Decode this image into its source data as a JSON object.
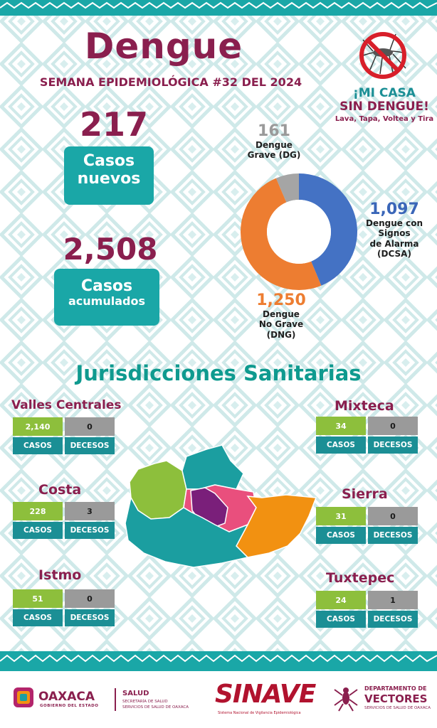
{
  "header": {
    "title": "Dengue",
    "subtitle": "SEMANA EPIDEMIOLÓGICA #32 DEL 2024"
  },
  "campaign": {
    "line1": "¡MI CASA",
    "line2": "SIN DENGUE!",
    "slogan": "Lava, Tapa, Voltea y Tira"
  },
  "summary": {
    "new_cases_value": "217",
    "new_cases_label_1": "Casos",
    "new_cases_label_2": "nuevos",
    "total_cases_value": "2,508",
    "total_cases_label_1": "Casos",
    "total_cases_label_2": "acumulados"
  },
  "chart_data": {
    "type": "pie",
    "series": [
      {
        "value": 1097,
        "value_label": "1,097",
        "label_lines": [
          "Dengue con",
          "Signos",
          "de Alarma",
          "(DCSA)"
        ],
        "color": "#4472c4"
      },
      {
        "value": 1250,
        "value_label": "1,250",
        "label_lines": [
          "Dengue",
          "No Grave",
          "(DNG)"
        ],
        "color": "#ed7d31"
      },
      {
        "value": 161,
        "value_label": "161",
        "label_lines": [
          "Dengue",
          "Grave (DG)"
        ],
        "color": "#a5a5a5"
      }
    ]
  },
  "jurisdictions_title": "Jurisdicciones Sanitarias",
  "jurisdictions": [
    {
      "name": "Valles Centrales",
      "cases": "2,140",
      "deaths": "0",
      "cases_label": "CASOS",
      "deaths_label": "DECESOS"
    },
    {
      "name": "Costa",
      "cases": "228",
      "deaths": "3",
      "cases_label": "CASOS",
      "deaths_label": "DECESOS"
    },
    {
      "name": "Istmo",
      "cases": "51",
      "deaths": "0",
      "cases_label": "CASOS",
      "deaths_label": "DECESOS"
    },
    {
      "name": "Mixteca",
      "cases": "34",
      "deaths": "0",
      "cases_label": "CASOS",
      "deaths_label": "DECESOS"
    },
    {
      "name": "Sierra",
      "cases": "31",
      "deaths": "0",
      "cases_label": "CASOS",
      "deaths_label": "DECESOS"
    },
    {
      "name": "Tuxtepec",
      "cases": "24",
      "deaths": "1",
      "cases_label": "CASOS",
      "deaths_label": "DECESOS"
    }
  ],
  "map_colors": {
    "mixteca": "#8dbf3c",
    "valles": "#7a1f7a",
    "sierra_center": "#e94f7d",
    "costa": "#1b9ea0",
    "istmo": "#f29111",
    "tuxtepec": "#1b9ea0"
  },
  "footer": {
    "oaxaca": "OAXACA",
    "oaxaca_sub": "GOBIERNO DEL ESTADO",
    "salud": "SALUD",
    "salud_sub_1": "SECRETARÍA DE SALUD",
    "salud_sub_2": "SERVICIOS DE SALUD DE OAXACA",
    "sinave": "SINAVE",
    "sinave_sub": "Sistema Nacional de Vigilancia Epidemiológica",
    "dept_1": "DEPARTAMENTO DE",
    "dept_2": "VECTORES",
    "dept_3": "SERVICIOS DE SALUD DE OAXACA"
  }
}
